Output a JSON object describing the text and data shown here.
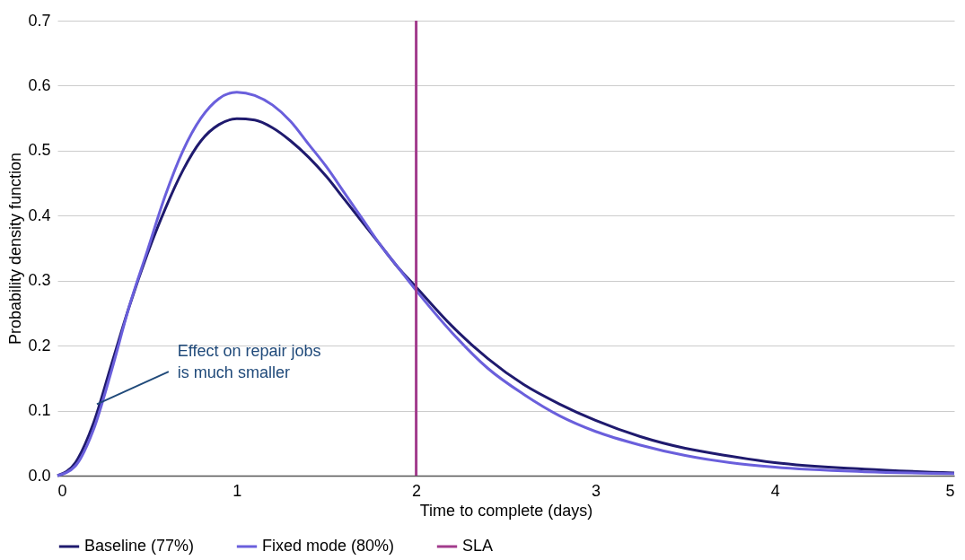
{
  "chart_data": {
    "type": "line",
    "xlabel": "Time to complete (days)",
    "ylabel": "Probability density function",
    "x": [
      0,
      0.1,
      0.2,
      0.3,
      0.4,
      0.5,
      0.6,
      0.7,
      0.8,
      0.9,
      1.0,
      1.1,
      1.2,
      1.3,
      1.4,
      1.5,
      1.6,
      1.7,
      1.8,
      1.9,
      2.0,
      2.2,
      2.4,
      2.6,
      2.8,
      3.0,
      3.25,
      3.5,
      3.75,
      4.0,
      4.5,
      5.0
    ],
    "series": [
      {
        "name": "Baseline (77%)",
        "color": "#1f1a6e",
        "values": [
          0,
          0.02,
          0.08,
          0.17,
          0.26,
          0.34,
          0.41,
          0.47,
          0.515,
          0.54,
          0.549,
          0.547,
          0.535,
          0.515,
          0.49,
          0.46,
          0.425,
          0.39,
          0.355,
          0.32,
          0.29,
          0.23,
          0.18,
          0.14,
          0.11,
          0.085,
          0.06,
          0.042,
          0.03,
          0.02,
          0.01,
          0.004
        ]
      },
      {
        "name": "Fixed mode (80%)",
        "color": "#6a5fdc",
        "values": [
          0,
          0.015,
          0.07,
          0.16,
          0.26,
          0.345,
          0.43,
          0.5,
          0.55,
          0.58,
          0.59,
          0.585,
          0.57,
          0.545,
          0.51,
          0.475,
          0.435,
          0.395,
          0.355,
          0.32,
          0.285,
          0.22,
          0.165,
          0.125,
          0.092,
          0.068,
          0.047,
          0.031,
          0.02,
          0.013,
          0.006,
          0.003
        ]
      }
    ],
    "ref_lines": [
      {
        "axis": "x",
        "value": 2,
        "label": "SLA",
        "color": "#a23b8c"
      }
    ],
    "annotations": [
      {
        "text": "Effect on repair jobs\nis much smaller",
        "x": 0.22,
        "y": 0.11
      }
    ],
    "xlim": [
      0,
      5
    ],
    "xticks": [
      0,
      1,
      2,
      3,
      4,
      5
    ],
    "ylim": [
      0,
      0.7
    ],
    "yticks": [
      {
        "value": 0,
        "label": "0.0"
      },
      {
        "value": 0.1,
        "label": "0.1"
      },
      {
        "value": 0.2,
        "label": "0.2"
      },
      {
        "value": 0.3,
        "label": "0.3"
      },
      {
        "value": 0.4,
        "label": "0.4"
      },
      {
        "value": 0.5,
        "label": "0.5"
      },
      {
        "value": 0.6,
        "label": "0.6"
      },
      {
        "value": 0.7,
        "label": "0.7"
      }
    ],
    "grid": "y",
    "legend": "bottom",
    "marker": "none",
    "line_style": "solid"
  }
}
